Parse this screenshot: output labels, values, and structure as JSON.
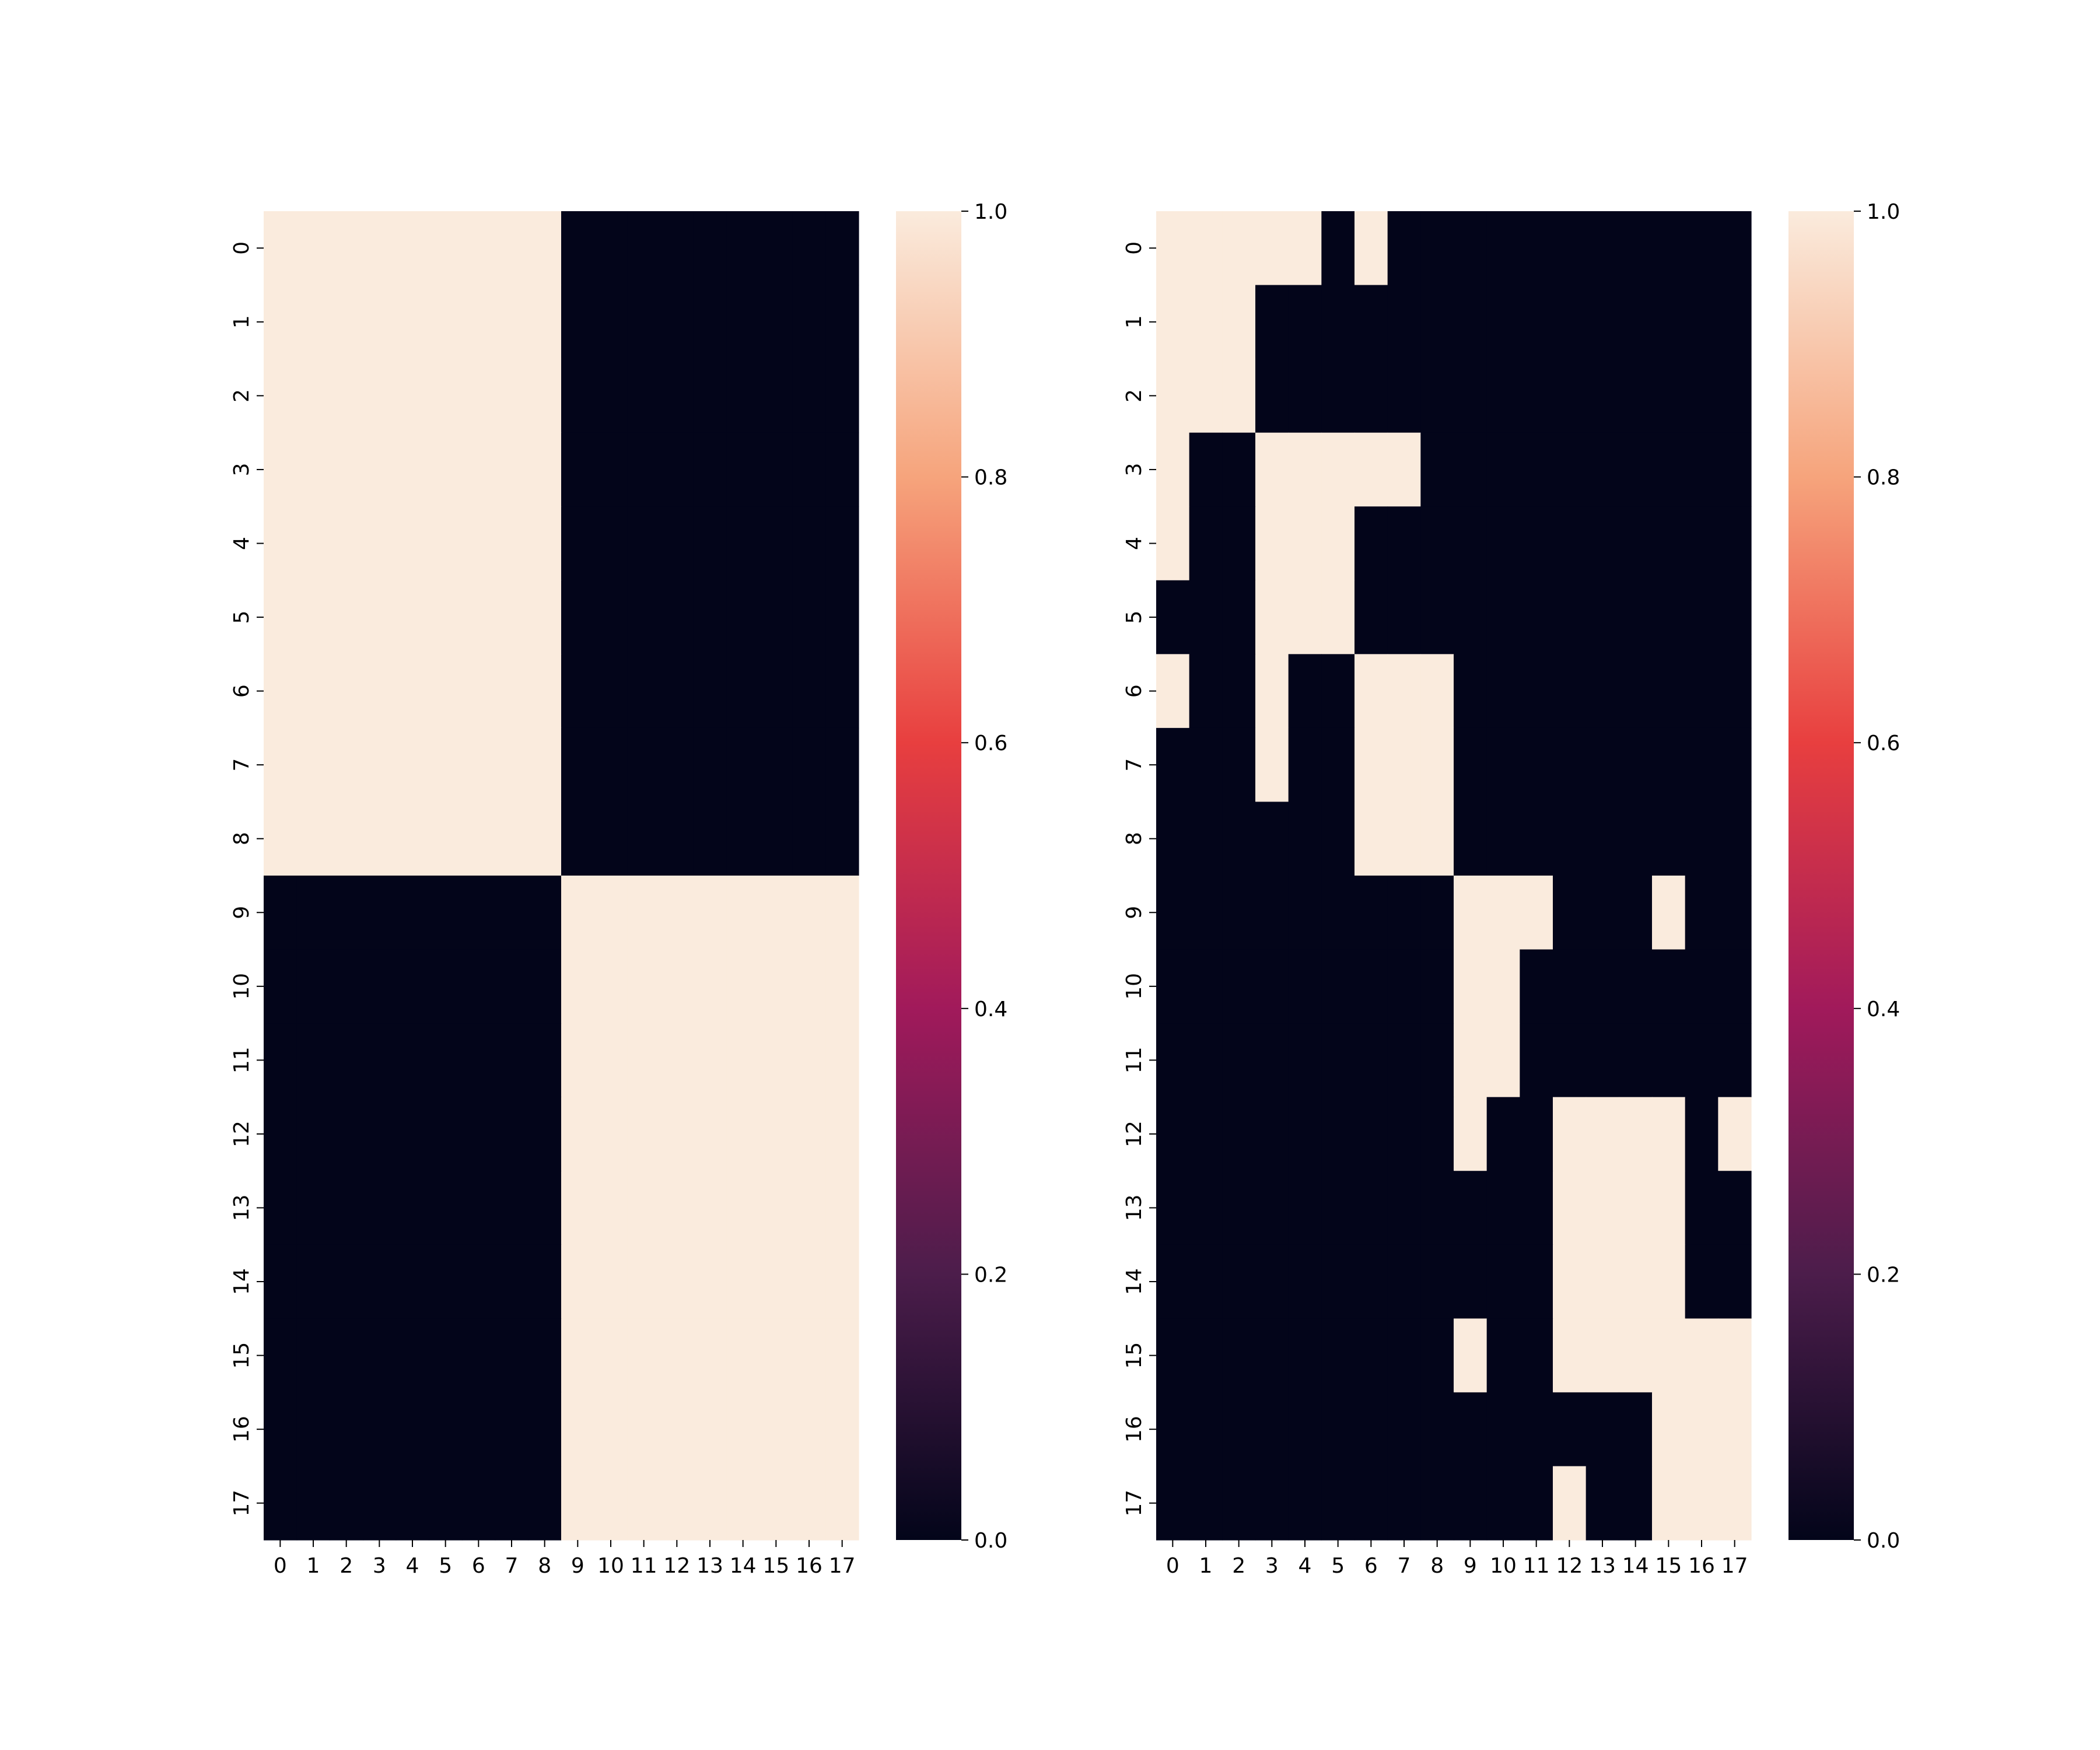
{
  "chart_data": [
    {
      "type": "heatmap",
      "title": "",
      "xlabel": "",
      "ylabel": "",
      "x_ticks": [
        "0",
        "1",
        "2",
        "3",
        "4",
        "5",
        "6",
        "7",
        "8",
        "9",
        "10",
        "11",
        "12",
        "13",
        "14",
        "15",
        "16",
        "17"
      ],
      "y_ticks": [
        "0",
        "1",
        "2",
        "3",
        "4",
        "5",
        "6",
        "7",
        "8",
        "9",
        "10",
        "11",
        "12",
        "13",
        "14",
        "15",
        "16",
        "17"
      ],
      "values": [
        [
          1,
          1,
          1,
          1,
          1,
          1,
          1,
          1,
          1,
          0,
          0,
          0,
          0,
          0,
          0,
          0,
          0,
          0
        ],
        [
          1,
          1,
          1,
          1,
          1,
          1,
          1,
          1,
          1,
          0,
          0,
          0,
          0,
          0,
          0,
          0,
          0,
          0
        ],
        [
          1,
          1,
          1,
          1,
          1,
          1,
          1,
          1,
          1,
          0,
          0,
          0,
          0,
          0,
          0,
          0,
          0,
          0
        ],
        [
          1,
          1,
          1,
          1,
          1,
          1,
          1,
          1,
          1,
          0,
          0,
          0,
          0,
          0,
          0,
          0,
          0,
          0
        ],
        [
          1,
          1,
          1,
          1,
          1,
          1,
          1,
          1,
          1,
          0,
          0,
          0,
          0,
          0,
          0,
          0,
          0,
          0
        ],
        [
          1,
          1,
          1,
          1,
          1,
          1,
          1,
          1,
          1,
          0,
          0,
          0,
          0,
          0,
          0,
          0,
          0,
          0
        ],
        [
          1,
          1,
          1,
          1,
          1,
          1,
          1,
          1,
          1,
          0,
          0,
          0,
          0,
          0,
          0,
          0,
          0,
          0
        ],
        [
          1,
          1,
          1,
          1,
          1,
          1,
          1,
          1,
          1,
          0,
          0,
          0,
          0,
          0,
          0,
          0,
          0,
          0
        ],
        [
          1,
          1,
          1,
          1,
          1,
          1,
          1,
          1,
          1,
          0,
          0,
          0,
          0,
          0,
          0,
          0,
          0,
          0
        ],
        [
          0,
          0,
          0,
          0,
          0,
          0,
          0,
          0,
          0,
          1,
          1,
          1,
          1,
          1,
          1,
          1,
          1,
          1
        ],
        [
          0,
          0,
          0,
          0,
          0,
          0,
          0,
          0,
          0,
          1,
          1,
          1,
          1,
          1,
          1,
          1,
          1,
          1
        ],
        [
          0,
          0,
          0,
          0,
          0,
          0,
          0,
          0,
          0,
          1,
          1,
          1,
          1,
          1,
          1,
          1,
          1,
          1
        ],
        [
          0,
          0,
          0,
          0,
          0,
          0,
          0,
          0,
          0,
          1,
          1,
          1,
          1,
          1,
          1,
          1,
          1,
          1
        ],
        [
          0,
          0,
          0,
          0,
          0,
          0,
          0,
          0,
          0,
          1,
          1,
          1,
          1,
          1,
          1,
          1,
          1,
          1
        ],
        [
          0,
          0,
          0,
          0,
          0,
          0,
          0,
          0,
          0,
          1,
          1,
          1,
          1,
          1,
          1,
          1,
          1,
          1
        ],
        [
          0,
          0,
          0,
          0,
          0,
          0,
          0,
          0,
          0,
          1,
          1,
          1,
          1,
          1,
          1,
          1,
          1,
          1
        ],
        [
          0,
          0,
          0,
          0,
          0,
          0,
          0,
          0,
          0,
          1,
          1,
          1,
          1,
          1,
          1,
          1,
          1,
          1
        ],
        [
          0,
          0,
          0,
          0,
          0,
          0,
          0,
          0,
          0,
          1,
          1,
          1,
          1,
          1,
          1,
          1,
          1,
          1
        ]
      ],
      "colorbar": {
        "range": [
          0.0,
          1.0
        ],
        "ticks": [
          "0.0",
          "0.2",
          "0.4",
          "0.6",
          "0.8",
          "1.0"
        ]
      },
      "colormap": [
        "#03051a",
        "#4c1d4b",
        "#a11a5b",
        "#e83f3f",
        "#f6a47c",
        "#faebdd"
      ]
    },
    {
      "type": "heatmap",
      "title": "",
      "xlabel": "",
      "ylabel": "",
      "x_ticks": [
        "0",
        "1",
        "2",
        "3",
        "4",
        "5",
        "6",
        "7",
        "8",
        "9",
        "10",
        "11",
        "12",
        "13",
        "14",
        "15",
        "16",
        "17"
      ],
      "y_ticks": [
        "0",
        "1",
        "2",
        "3",
        "4",
        "5",
        "6",
        "7",
        "8",
        "9",
        "10",
        "11",
        "12",
        "13",
        "14",
        "15",
        "16",
        "17"
      ],
      "values": [
        [
          1,
          1,
          1,
          1,
          1,
          0,
          1,
          0,
          0,
          0,
          0,
          0,
          0,
          0,
          0,
          0,
          0,
          0
        ],
        [
          1,
          1,
          1,
          0,
          0,
          0,
          0,
          0,
          0,
          0,
          0,
          0,
          0,
          0,
          0,
          0,
          0,
          0
        ],
        [
          1,
          1,
          1,
          0,
          0,
          0,
          0,
          0,
          0,
          0,
          0,
          0,
          0,
          0,
          0,
          0,
          0,
          0
        ],
        [
          1,
          0,
          0,
          1,
          1,
          1,
          1,
          1,
          0,
          0,
          0,
          0,
          0,
          0,
          0,
          0,
          0,
          0
        ],
        [
          1,
          0,
          0,
          1,
          1,
          1,
          0,
          0,
          0,
          0,
          0,
          0,
          0,
          0,
          0,
          0,
          0,
          0
        ],
        [
          0,
          0,
          0,
          1,
          1,
          1,
          0,
          0,
          0,
          0,
          0,
          0,
          0,
          0,
          0,
          0,
          0,
          0
        ],
        [
          1,
          0,
          0,
          1,
          0,
          0,
          1,
          1,
          1,
          0,
          0,
          0,
          0,
          0,
          0,
          0,
          0,
          0
        ],
        [
          0,
          0,
          0,
          1,
          0,
          0,
          1,
          1,
          1,
          0,
          0,
          0,
          0,
          0,
          0,
          0,
          0,
          0
        ],
        [
          0,
          0,
          0,
          0,
          0,
          0,
          1,
          1,
          1,
          0,
          0,
          0,
          0,
          0,
          0,
          0,
          0,
          0
        ],
        [
          0,
          0,
          0,
          0,
          0,
          0,
          0,
          0,
          0,
          1,
          1,
          1,
          0,
          0,
          0,
          1,
          0,
          0
        ],
        [
          0,
          0,
          0,
          0,
          0,
          0,
          0,
          0,
          0,
          1,
          1,
          0,
          0,
          0,
          0,
          0,
          0,
          0
        ],
        [
          0,
          0,
          0,
          0,
          0,
          0,
          0,
          0,
          0,
          1,
          1,
          0,
          0,
          0,
          0,
          0,
          0,
          0
        ],
        [
          0,
          0,
          0,
          0,
          0,
          0,
          0,
          0,
          0,
          1,
          0,
          0,
          1,
          1,
          1,
          1,
          0,
          1
        ],
        [
          0,
          0,
          0,
          0,
          0,
          0,
          0,
          0,
          0,
          0,
          0,
          0,
          1,
          1,
          1,
          1,
          0,
          0
        ],
        [
          0,
          0,
          0,
          0,
          0,
          0,
          0,
          0,
          0,
          0,
          0,
          0,
          1,
          1,
          1,
          1,
          0,
          0
        ],
        [
          0,
          0,
          0,
          0,
          0,
          0,
          0,
          0,
          0,
          1,
          0,
          0,
          1,
          1,
          1,
          1,
          1,
          1
        ],
        [
          0,
          0,
          0,
          0,
          0,
          0,
          0,
          0,
          0,
          0,
          0,
          0,
          0,
          0,
          0,
          1,
          1,
          1
        ],
        [
          0,
          0,
          0,
          0,
          0,
          0,
          0,
          0,
          0,
          0,
          0,
          0,
          1,
          0,
          0,
          1,
          1,
          1
        ]
      ],
      "colorbar": {
        "range": [
          0.0,
          1.0
        ],
        "ticks": [
          "0.0",
          "0.2",
          "0.4",
          "0.6",
          "0.8",
          "1.0"
        ]
      },
      "colormap": [
        "#03051a",
        "#4c1d4b",
        "#a11a5b",
        "#e83f3f",
        "#f6a47c",
        "#faebdd"
      ]
    }
  ]
}
